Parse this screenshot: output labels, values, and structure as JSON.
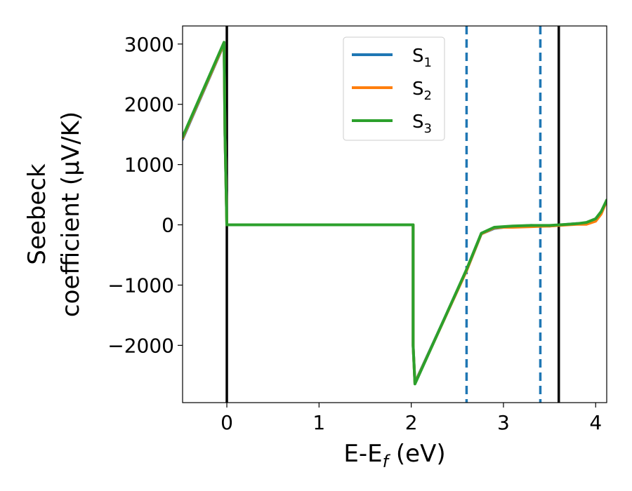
{
  "chart_data": {
    "type": "line",
    "xlabel": "E-E",
    "xlabel_sub": "f",
    "xlabel_unit": " (eV)",
    "ylabel_line1": "Seebeck",
    "ylabel_line2": "coefficient  (μV/K)",
    "xlim": [
      -0.48,
      4.12
    ],
    "ylim": [
      -2950,
      3300
    ],
    "xticks": [
      0,
      1,
      2,
      3,
      4
    ],
    "xtick_labels": [
      "0",
      "1",
      "2",
      "3",
      "4"
    ],
    "yticks": [
      -2000,
      -1000,
      0,
      1000,
      2000,
      3000
    ],
    "ytick_labels": [
      "−2000",
      "−1000",
      "0",
      "1000",
      "2000",
      "3000"
    ],
    "grid": false,
    "legend_position": "top-center",
    "series": [
      {
        "name": "S",
        "sub": "1",
        "color": "#1f77b4",
        "x": [
          -0.48,
          -0.03,
          -0.02,
          0.0,
          2.02,
          2.02,
          2.04,
          2.6,
          2.76,
          2.9,
          3.0,
          3.1,
          3.3,
          3.5,
          3.7,
          3.8,
          3.9,
          4.0,
          4.06,
          4.12
        ],
        "y": [
          1420,
          3000,
          1500,
          0,
          0,
          -2000,
          -2620,
          -760,
          -150,
          -60,
          -40,
          -30,
          -10,
          -20,
          10,
          20,
          20,
          80,
          200,
          400
        ]
      },
      {
        "name": "S",
        "sub": "2",
        "color": "#ff7f0e",
        "x": [
          -0.48,
          -0.03,
          -0.02,
          0.0,
          2.02,
          2.02,
          2.04,
          2.6,
          2.76,
          2.9,
          3.0,
          3.1,
          3.3,
          3.5,
          3.7,
          3.8,
          3.9,
          4.0,
          4.06,
          4.12
        ],
        "y": [
          1440,
          3010,
          1500,
          0,
          0,
          -2000,
          -2630,
          -760,
          -150,
          -50,
          -40,
          -40,
          -30,
          -20,
          0,
          10,
          10,
          60,
          180,
          400
        ]
      },
      {
        "name": "S",
        "sub": "3",
        "color": "#2ca02c",
        "x": [
          -0.48,
          -0.03,
          -0.02,
          0.0,
          2.02,
          2.02,
          2.04,
          2.6,
          2.76,
          2.9,
          3.0,
          3.1,
          3.3,
          3.5,
          3.7,
          3.8,
          3.9,
          4.0,
          4.06,
          4.12
        ],
        "y": [
          1460,
          3030,
          1500,
          0,
          0,
          -2000,
          -2640,
          -740,
          -140,
          -40,
          -30,
          -20,
          -10,
          -10,
          10,
          20,
          40,
          100,
          220,
          410
        ]
      }
    ],
    "vlines": [
      {
        "x": 0.0,
        "style": "solid",
        "color": "#000000"
      },
      {
        "x": 3.6,
        "style": "solid",
        "color": "#000000"
      },
      {
        "x": 2.6,
        "style": "dashed",
        "color": "#1f77b4"
      },
      {
        "x": 3.4,
        "style": "dashed",
        "color": "#1f77b4"
      }
    ]
  }
}
